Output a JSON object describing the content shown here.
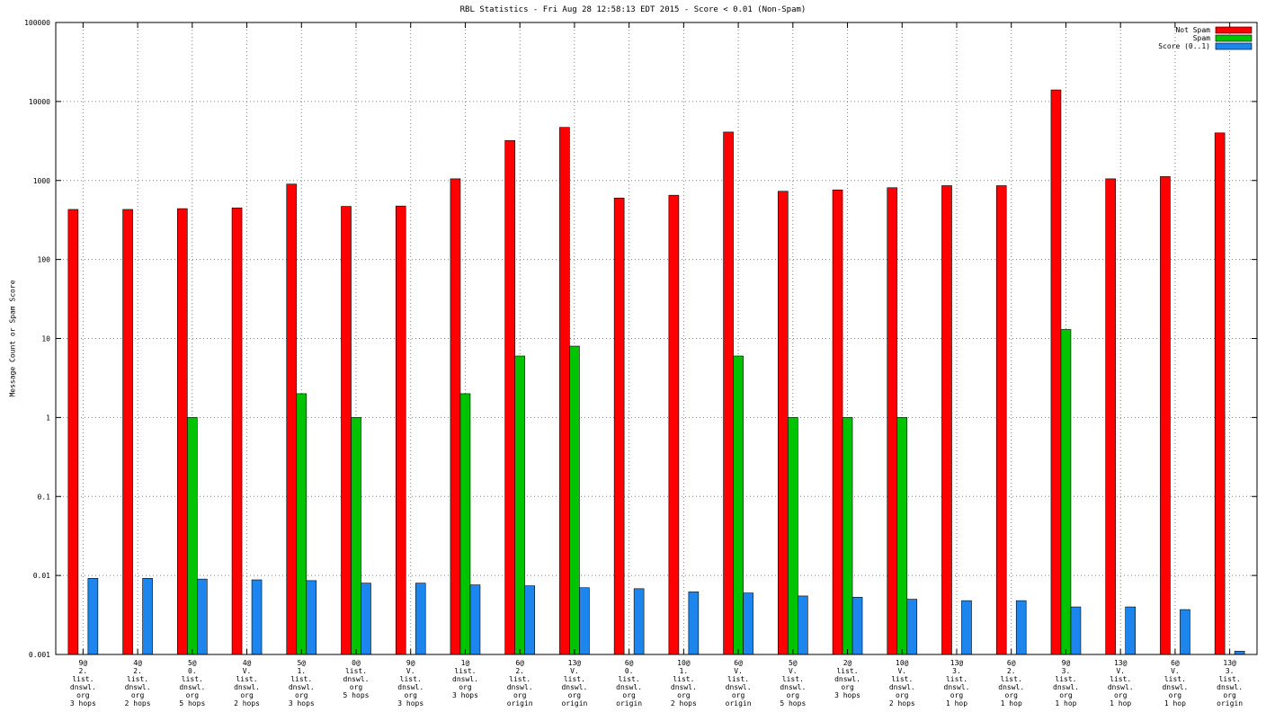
{
  "window": {
    "title": "RBL Statistics - Fri Aug 28 12:58:13 EDT 2015 - Score < 0.01 (Non-Spam)"
  },
  "axes": {
    "y_label": "Message Count or Spam Score",
    "y_tick_labels": [
      "100000",
      "10000",
      "1000",
      "100",
      "10",
      "1",
      "0.1",
      "0.01",
      "0.001"
    ]
  },
  "legend": {
    "entries": [
      {
        "label": "Not Spam",
        "color": "#ff0000"
      },
      {
        "label": "Spam",
        "color": "#00c400"
      },
      {
        "label": "Score (0..1)",
        "color": "#1c86ee"
      }
    ]
  },
  "chart_data": {
    "type": "bar",
    "title": "RBL Statistics - Fri Aug 28 12:58:13 EDT 2015 - Score < 0.01 (Non-Spam)",
    "xlabel": "",
    "ylabel": "Message Count or Spam Score",
    "y_scale": "log",
    "ylim": [
      0.001,
      100000
    ],
    "y_ticks": [
      100000,
      10000,
      1000,
      100,
      10,
      1,
      0.1,
      0.01,
      0.001
    ],
    "grid": true,
    "legend_position": "top-right",
    "categories": [
      [
        "9@",
        "2.",
        "list.",
        "dnswl.",
        "org",
        "3 hops"
      ],
      [
        "4@",
        "2.",
        "list.",
        "dnswl.",
        "org",
        "2 hops"
      ],
      [
        "5@",
        "0.",
        "list.",
        "dnswl.",
        "org",
        "5 hops"
      ],
      [
        "4@",
        "V.",
        "list.",
        "dnswl.",
        "org",
        "2 hops"
      ],
      [
        "5@",
        "1.",
        "list.",
        "dnswl.",
        "org",
        "3 hops"
      ],
      [
        "0@",
        "list.",
        "dnswl.",
        "org",
        "5 hops"
      ],
      [
        "9@",
        "V.",
        "list.",
        "dnswl.",
        "org",
        "3 hops"
      ],
      [
        "1@",
        "list.",
        "dnswl.",
        "org",
        "3 hops"
      ],
      [
        "6@",
        "2.",
        "list.",
        "dnswl.",
        "org",
        "origin"
      ],
      [
        "13@",
        "V.",
        "list.",
        "dnswl.",
        "org",
        "origin"
      ],
      [
        "6@",
        "0.",
        "list.",
        "dnswl.",
        "org",
        "origin"
      ],
      [
        "10@",
        "1.",
        "list.",
        "dnswl.",
        "org",
        "2 hops"
      ],
      [
        "6@",
        "V.",
        "list.",
        "dnswl.",
        "org",
        "origin"
      ],
      [
        "5@",
        "V.",
        "list.",
        "dnswl.",
        "org",
        "5 hops"
      ],
      [
        "2@",
        "list.",
        "dnswl.",
        "org",
        "3 hops"
      ],
      [
        "10@",
        "V.",
        "list.",
        "dnswl.",
        "org",
        "2 hops"
      ],
      [
        "13@",
        "3.",
        "list.",
        "dnswl.",
        "org",
        "1 hop"
      ],
      [
        "6@",
        "2.",
        "list.",
        "dnswl.",
        "org",
        "1 hop"
      ],
      [
        "9@",
        "3.",
        "list.",
        "dnswl.",
        "org",
        "1 hop"
      ],
      [
        "13@",
        "V.",
        "list.",
        "dnswl.",
        "org",
        "1 hop"
      ],
      [
        "6@",
        "V.",
        "list.",
        "dnswl.",
        "org",
        "1 hop"
      ],
      [
        "13@",
        "3.",
        "list.",
        "dnswl.",
        "org",
        "origin"
      ]
    ],
    "series": [
      {
        "name": "Not Spam",
        "color": "#ff0000",
        "values": [
          430,
          430,
          440,
          450,
          900,
          470,
          475,
          1050,
          3200,
          4700,
          600,
          650,
          4100,
          730,
          760,
          810,
          860,
          860,
          14000,
          1050,
          1120,
          4000
        ]
      },
      {
        "name": "Spam",
        "color": "#00c400",
        "values": [
          null,
          null,
          1,
          null,
          2,
          1,
          null,
          2,
          6,
          8,
          null,
          null,
          6,
          1,
          1,
          1,
          null,
          null,
          13,
          null,
          null,
          null
        ]
      },
      {
        "name": "Score (0..1)",
        "color": "#1c86ee",
        "values": [
          0.0092,
          0.0092,
          0.009,
          0.0088,
          0.0086,
          0.008,
          0.008,
          0.0076,
          0.0074,
          0.007,
          0.0068,
          0.0062,
          0.006,
          0.0055,
          0.0053,
          0.005,
          0.0048,
          0.0048,
          0.004,
          0.004,
          0.0037,
          0.0011
        ]
      }
    ]
  }
}
